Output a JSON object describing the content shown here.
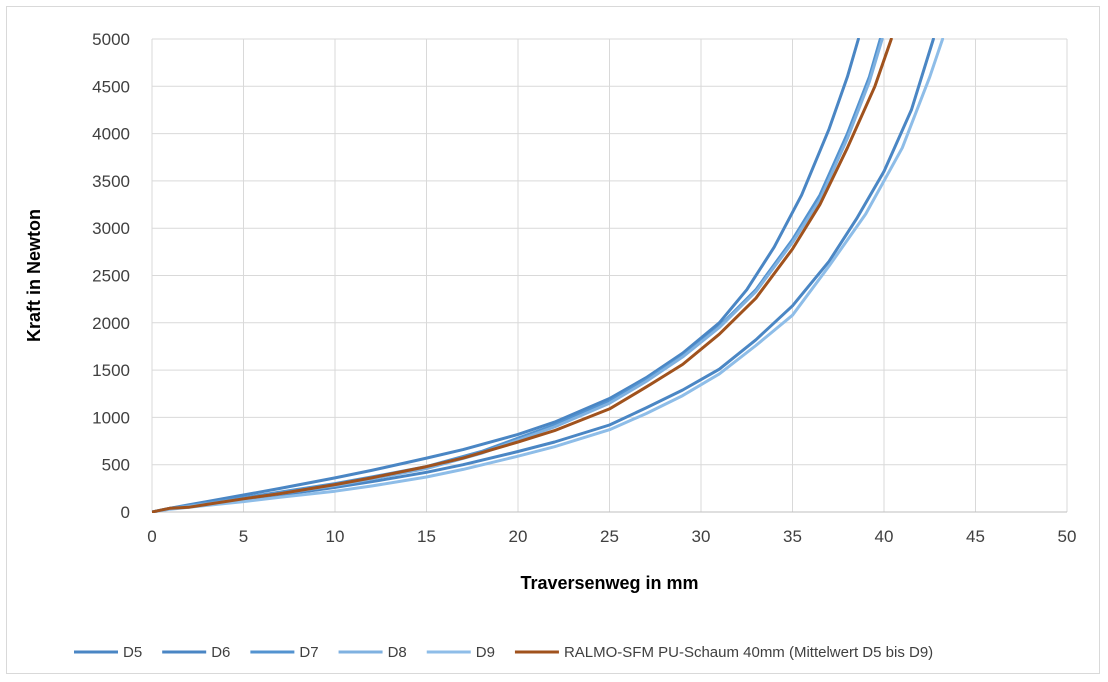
{
  "chart_data": {
    "type": "line",
    "title": "",
    "xlabel": "Traversenweg in mm",
    "ylabel": "Kraft in Newton",
    "xlim": [
      0,
      50
    ],
    "ylim": [
      0,
      5000
    ],
    "x_ticks": [
      "0",
      "5",
      "10",
      "15",
      "20",
      "25",
      "30",
      "35",
      "40",
      "45",
      "50"
    ],
    "y_ticks": [
      "0",
      "500",
      "1000",
      "1500",
      "2000",
      "2500",
      "3000",
      "3500",
      "4000",
      "4500",
      "5000"
    ],
    "grid": true,
    "legend_position": "bottom",
    "series": [
      {
        "name": "D5",
        "color": "#4a86c4",
        "points": [
          [
            0,
            0
          ],
          [
            1,
            40
          ],
          [
            2,
            75
          ],
          [
            3,
            110
          ],
          [
            5,
            180
          ],
          [
            7,
            250
          ],
          [
            10,
            360
          ],
          [
            12,
            440
          ],
          [
            15,
            570
          ],
          [
            17,
            660
          ],
          [
            20,
            820
          ],
          [
            22,
            950
          ],
          [
            25,
            1200
          ],
          [
            27,
            1420
          ],
          [
            29,
            1680
          ],
          [
            31,
            2000
          ],
          [
            32.5,
            2350
          ],
          [
            34,
            2800
          ],
          [
            35.5,
            3350
          ],
          [
            37,
            4050
          ],
          [
            38,
            4600
          ],
          [
            38.6,
            5000
          ]
        ]
      },
      {
        "name": "D6",
        "color": "#4a86c4",
        "points": [
          [
            0,
            0
          ],
          [
            1,
            35
          ],
          [
            3,
            80
          ],
          [
            5,
            130
          ],
          [
            7,
            180
          ],
          [
            10,
            260
          ],
          [
            12,
            320
          ],
          [
            15,
            420
          ],
          [
            17,
            500
          ],
          [
            20,
            640
          ],
          [
            22,
            740
          ],
          [
            25,
            920
          ],
          [
            27,
            1100
          ],
          [
            29,
            1290
          ],
          [
            31,
            1510
          ],
          [
            33,
            1820
          ],
          [
            35,
            2180
          ],
          [
            37,
            2650
          ],
          [
            38.5,
            3100
          ],
          [
            40,
            3600
          ],
          [
            41.5,
            4250
          ],
          [
            42.7,
            5000
          ]
        ]
      },
      {
        "name": "D7",
        "color": "#5393d0",
        "points": [
          [
            0,
            0
          ],
          [
            1,
            40
          ],
          [
            3,
            95
          ],
          [
            5,
            150
          ],
          [
            7,
            210
          ],
          [
            10,
            300
          ],
          [
            12,
            370
          ],
          [
            15,
            480
          ],
          [
            18,
            640
          ],
          [
            20,
            780
          ],
          [
            22,
            920
          ],
          [
            25,
            1170
          ],
          [
            27,
            1400
          ],
          [
            29,
            1650
          ],
          [
            31,
            1960
          ],
          [
            33,
            2350
          ],
          [
            35,
            2880
          ],
          [
            36.5,
            3350
          ],
          [
            38,
            4000
          ],
          [
            39.2,
            4600
          ],
          [
            39.8,
            5000
          ]
        ]
      },
      {
        "name": "D8",
        "color": "#7fb1e0",
        "points": [
          [
            0,
            0
          ],
          [
            1,
            35
          ],
          [
            3,
            85
          ],
          [
            5,
            140
          ],
          [
            7,
            195
          ],
          [
            10,
            280
          ],
          [
            12,
            350
          ],
          [
            15,
            460
          ],
          [
            18,
            620
          ],
          [
            20,
            760
          ],
          [
            22,
            900
          ],
          [
            25,
            1150
          ],
          [
            27,
            1380
          ],
          [
            29,
            1640
          ],
          [
            31,
            1950
          ],
          [
            33,
            2330
          ],
          [
            35,
            2850
          ],
          [
            36.5,
            3300
          ],
          [
            38,
            3950
          ],
          [
            39.2,
            4550
          ],
          [
            39.9,
            5000
          ]
        ]
      },
      {
        "name": "D9",
        "color": "#8ebde8",
        "points": [
          [
            0,
            0
          ],
          [
            1,
            30
          ],
          [
            3,
            70
          ],
          [
            5,
            110
          ],
          [
            7,
            155
          ],
          [
            10,
            220
          ],
          [
            12,
            275
          ],
          [
            15,
            370
          ],
          [
            17,
            450
          ],
          [
            20,
            590
          ],
          [
            22,
            690
          ],
          [
            25,
            870
          ],
          [
            27,
            1040
          ],
          [
            29,
            1230
          ],
          [
            31,
            1460
          ],
          [
            33,
            1760
          ],
          [
            35,
            2080
          ],
          [
            37,
            2600
          ],
          [
            39,
            3150
          ],
          [
            41,
            3850
          ],
          [
            42.5,
            4600
          ],
          [
            43.2,
            5000
          ]
        ]
      },
      {
        "name": "RALMO-SFM PU-Schaum 40mm (Mittelwert D5 bis D9)",
        "color": "#a0521d",
        "points": [
          [
            0,
            0
          ],
          [
            1,
            40
          ],
          [
            2,
            50
          ],
          [
            3,
            80
          ],
          [
            5,
            140
          ],
          [
            7,
            195
          ],
          [
            10,
            290
          ],
          [
            12,
            360
          ],
          [
            15,
            480
          ],
          [
            17,
            570
          ],
          [
            20,
            740
          ],
          [
            22,
            860
          ],
          [
            25,
            1090
          ],
          [
            27,
            1320
          ],
          [
            29,
            1560
          ],
          [
            31,
            1880
          ],
          [
            33,
            2260
          ],
          [
            35,
            2780
          ],
          [
            36.5,
            3250
          ],
          [
            38,
            3850
          ],
          [
            39.5,
            4500
          ],
          [
            40.4,
            5000
          ]
        ]
      }
    ]
  }
}
